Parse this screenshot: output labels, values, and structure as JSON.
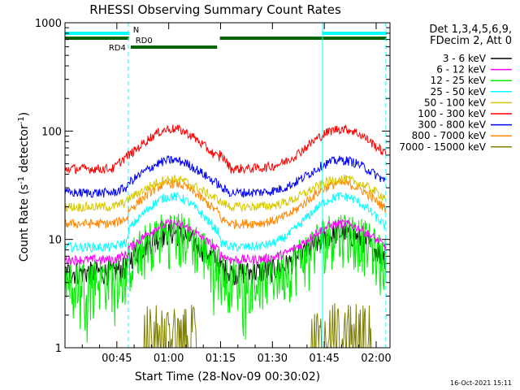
{
  "chart_data": {
    "type": "line",
    "title": "RHESSI Observing Summary Count Rates",
    "xlabel": "Start Time (28-Nov-09 00:30:02)",
    "ylabel_main": "Count Rate (s",
    "ylabel_sup1": "-1",
    "ylabel_mid": " detector",
    "ylabel_sup2": "-1",
    "ylabel_end": ")",
    "y_scale": "log",
    "ylim": [
      1,
      1000
    ],
    "xlim_minutes": [
      30.0,
      124.0
    ],
    "x_ticks": [
      {
        "m": 45,
        "label": "00:45"
      },
      {
        "m": 60,
        "label": "01:00"
      },
      {
        "m": 75,
        "label": "01:15"
      },
      {
        "m": 90,
        "label": "01:30"
      },
      {
        "m": 105,
        "label": "01:45"
      },
      {
        "m": 120,
        "label": "02:00"
      }
    ],
    "y_ticks": [
      {
        "v": 1,
        "label": "1"
      },
      {
        "v": 10,
        "label": "10"
      },
      {
        "v": 100,
        "label": "100"
      },
      {
        "v": 1000,
        "label": "1000"
      }
    ],
    "legend_header": [
      "Det 1,3,4,5,6,9,",
      "FDecim 2, Att 0"
    ],
    "legend_position": "right",
    "series": [
      {
        "name": "3 - 6 keV",
        "color": "#000000",
        "night": 5.0,
        "peak": 11.5
      },
      {
        "name": "6 - 12 keV",
        "color": "#ff00ff",
        "night": 6.5,
        "peak": 14.0
      },
      {
        "name": "12 - 25 keV",
        "color": "#00ee00",
        "night": 4.5,
        "peak": 12.0
      },
      {
        "name": "25 - 50 keV",
        "color": "#00ffff",
        "night": 8.5,
        "peak": 25.0
      },
      {
        "name": "50 - 100 keV",
        "color": "#d8c800",
        "night": 20.0,
        "peak": 36.0
      },
      {
        "name": "100 - 300 keV",
        "color": "#ff0000",
        "night": 45.0,
        "peak": 105.0
      },
      {
        "name": "300 - 800 keV",
        "color": "#0000ff",
        "night": 27.0,
        "peak": 54.0
      },
      {
        "name": "800 - 7000 keV",
        "color": "#ff8800",
        "night": 14.0,
        "peak": 33.0
      },
      {
        "name": "7000 - 15000 keV",
        "color": "#808000",
        "night": 1.0,
        "peak": 2.4
      }
    ],
    "status_flags": [
      {
        "label": "N",
        "color": "#00ffff",
        "segments": [
          [
            30.0,
            48.5
          ],
          [
            104.5,
            123.0
          ]
        ]
      },
      {
        "label": "RD0",
        "color": "#006400",
        "segments": [
          [
            30.0,
            48.5
          ],
          [
            74.8,
            123.0
          ]
        ]
      },
      {
        "label": "RD4",
        "color": "#006400",
        "segments": [
          [
            49.0,
            74.0
          ]
        ]
      }
    ],
    "vertical_markers": [
      {
        "m": 30.0,
        "style": "solid"
      },
      {
        "m": 48.3,
        "style": "dashed"
      },
      {
        "m": 104.5,
        "style": "solid"
      },
      {
        "m": 122.8,
        "style": "dashed"
      }
    ],
    "timestamp": "16-Oct-2021 15:11"
  }
}
